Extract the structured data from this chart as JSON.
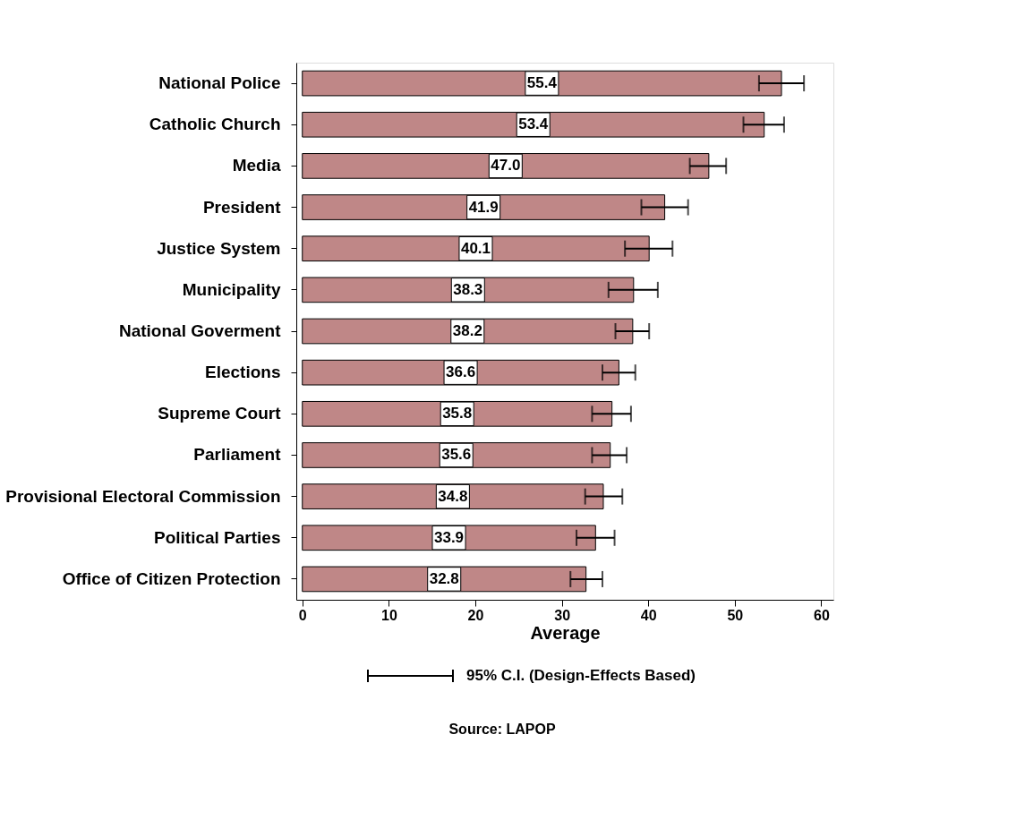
{
  "chart_data": {
    "type": "bar",
    "orientation": "horizontal",
    "categories": [
      "National Police",
      "Catholic Church",
      "Media",
      "President ",
      "Justice System",
      "Municipality",
      "National Goverment",
      "Elections",
      "Supreme Court",
      "Parliament",
      "Provisional Electoral Commission",
      "Political Parties",
      "Office of Citizen Protection"
    ],
    "values": [
      55.4,
      53.4,
      47.0,
      41.9,
      40.1,
      38.3,
      38.2,
      36.6,
      35.8,
      35.6,
      34.8,
      33.9,
      32.8
    ],
    "errors": [
      [
        52.8,
        58.0
      ],
      [
        51.0,
        55.7
      ],
      [
        44.8,
        49.0
      ],
      [
        39.2,
        44.6
      ],
      [
        37.3,
        42.8
      ],
      [
        35.4,
        41.1
      ],
      [
        36.2,
        40.1
      ],
      [
        34.7,
        38.5
      ],
      [
        33.5,
        38.0
      ],
      [
        33.5,
        37.5
      ],
      [
        32.7,
        37.0
      ],
      [
        31.7,
        36.1
      ],
      [
        31.0,
        34.7
      ]
    ],
    "color": "#bf8787",
    "value_labels": [
      "55.4",
      "53.4",
      "47.0",
      "41.9",
      "40.1",
      "38.3",
      "38.2",
      "36.6",
      "35.8",
      "35.6",
      "34.8",
      "33.9",
      "32.8"
    ],
    "xlim": [
      -0.7,
      61.4
    ],
    "xticks": [
      0,
      10,
      20,
      30,
      40,
      50,
      60
    ],
    "xlabel": "Average",
    "grid": false,
    "annotations": [
      "95% C.I. (Design-Effects Based)",
      "Source: LAPOP"
    ]
  }
}
